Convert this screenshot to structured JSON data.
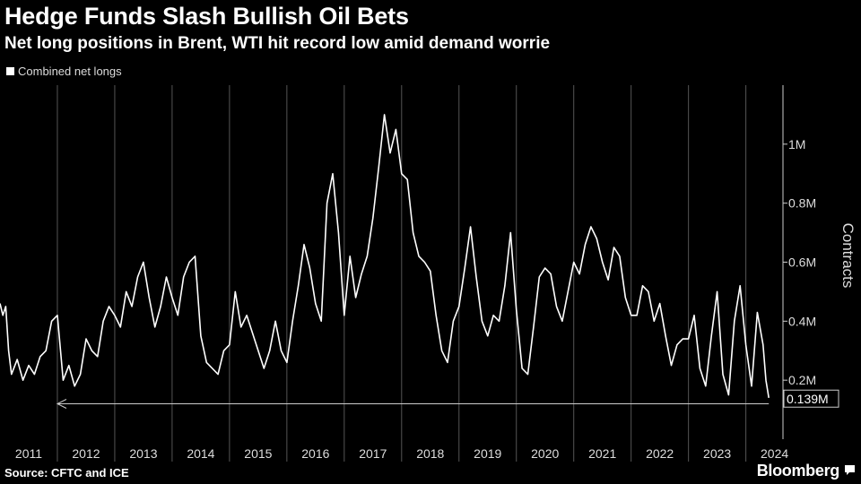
{
  "header": {
    "title": "Hedge Funds Slash Bullish Oil Bets",
    "subtitle": "Net long positions in Brent, WTI hit record low amid demand worrie"
  },
  "legend": {
    "label": "Combined net longs"
  },
  "footer": {
    "source": "Source: CFTC and ICE",
    "brand": "Bloomberg"
  },
  "icons": {
    "brand_icon": "speech-bubble-icon"
  },
  "colors": {
    "background": "#000000",
    "line": "#ffffff",
    "grid": "#555555"
  },
  "chart_data": {
    "type": "line",
    "title": "Hedge Funds Slash Bullish Oil Bets",
    "subtitle": "Net long positions in Brent, WTI hit record low amid demand worrie",
    "ylabel": "Contracts",
    "ylim": [
      0,
      1.2
    ],
    "xlim": [
      2011.0,
      2024.6
    ],
    "y_ticks": [
      0.2,
      0.4,
      0.6,
      0.8,
      1.0
    ],
    "y_tick_labels": [
      "0.2M",
      "0.4M",
      "0.6M",
      "0.8M",
      "1M"
    ],
    "x_ticks": [
      2011,
      2012,
      2013,
      2014,
      2015,
      2016,
      2017,
      2018,
      2019,
      2020,
      2021,
      2022,
      2023,
      2024
    ],
    "x_tick_labels": [
      "2011",
      "2012",
      "2013",
      "2014",
      "2015",
      "2016",
      "2017",
      "2018",
      "2019",
      "2020",
      "2021",
      "2022",
      "2023",
      "2024"
    ],
    "grid": "vertical",
    "legend_position": "top-left",
    "annotation": {
      "label": "0.139M",
      "value": 0.139,
      "type": "horizontal-arrow",
      "x_from": 2024.4,
      "x_to": 2012.0
    },
    "series": [
      {
        "name": "Combined net longs",
        "x": [
          2011.0,
          2011.05,
          2011.1,
          2011.15,
          2011.2,
          2011.3,
          2011.4,
          2011.5,
          2011.6,
          2011.7,
          2011.8,
          2011.9,
          2012.0,
          2012.1,
          2012.2,
          2012.3,
          2012.4,
          2012.5,
          2012.6,
          2012.7,
          2012.8,
          2012.9,
          2013.0,
          2013.1,
          2013.2,
          2013.3,
          2013.4,
          2013.5,
          2013.6,
          2013.7,
          2013.8,
          2013.9,
          2014.0,
          2014.1,
          2014.2,
          2014.3,
          2014.4,
          2014.5,
          2014.6,
          2014.7,
          2014.8,
          2014.9,
          2015.0,
          2015.1,
          2015.2,
          2015.3,
          2015.4,
          2015.5,
          2015.6,
          2015.7,
          2015.8,
          2015.9,
          2016.0,
          2016.1,
          2016.2,
          2016.3,
          2016.4,
          2016.5,
          2016.6,
          2016.7,
          2016.8,
          2016.9,
          2017.0,
          2017.1,
          2017.2,
          2017.3,
          2017.4,
          2017.5,
          2017.6,
          2017.7,
          2017.8,
          2017.9,
          2018.0,
          2018.1,
          2018.2,
          2018.3,
          2018.4,
          2018.5,
          2018.6,
          2018.7,
          2018.8,
          2018.9,
          2019.0,
          2019.1,
          2019.2,
          2019.3,
          2019.4,
          2019.5,
          2019.6,
          2019.7,
          2019.8,
          2019.9,
          2020.0,
          2020.1,
          2020.2,
          2020.3,
          2020.4,
          2020.5,
          2020.6,
          2020.7,
          2020.8,
          2020.9,
          2021.0,
          2021.1,
          2021.2,
          2021.3,
          2021.4,
          2021.5,
          2021.6,
          2021.7,
          2021.8,
          2021.9,
          2022.0,
          2022.1,
          2022.2,
          2022.3,
          2022.4,
          2022.5,
          2022.6,
          2022.7,
          2022.8,
          2022.9,
          2023.0,
          2023.1,
          2023.2,
          2023.3,
          2023.4,
          2023.5,
          2023.6,
          2023.7,
          2023.8,
          2023.9,
          2024.0,
          2024.1,
          2024.2,
          2024.3,
          2024.35,
          2024.4
        ],
        "values": [
          0.46,
          0.42,
          0.45,
          0.3,
          0.22,
          0.27,
          0.2,
          0.25,
          0.22,
          0.28,
          0.3,
          0.4,
          0.42,
          0.2,
          0.25,
          0.18,
          0.22,
          0.34,
          0.3,
          0.28,
          0.4,
          0.45,
          0.42,
          0.38,
          0.5,
          0.45,
          0.55,
          0.6,
          0.48,
          0.38,
          0.45,
          0.55,
          0.48,
          0.42,
          0.55,
          0.6,
          0.62,
          0.35,
          0.26,
          0.24,
          0.22,
          0.3,
          0.32,
          0.5,
          0.38,
          0.42,
          0.36,
          0.3,
          0.24,
          0.3,
          0.4,
          0.3,
          0.26,
          0.4,
          0.52,
          0.66,
          0.58,
          0.46,
          0.4,
          0.8,
          0.9,
          0.7,
          0.42,
          0.62,
          0.48,
          0.56,
          0.62,
          0.75,
          0.92,
          1.1,
          0.97,
          1.05,
          0.9,
          0.88,
          0.7,
          0.62,
          0.6,
          0.57,
          0.42,
          0.3,
          0.26,
          0.4,
          0.45,
          0.58,
          0.72,
          0.55,
          0.4,
          0.35,
          0.42,
          0.4,
          0.52,
          0.7,
          0.44,
          0.24,
          0.22,
          0.38,
          0.55,
          0.58,
          0.56,
          0.45,
          0.4,
          0.5,
          0.6,
          0.56,
          0.66,
          0.72,
          0.68,
          0.6,
          0.54,
          0.65,
          0.62,
          0.48,
          0.42,
          0.42,
          0.52,
          0.5,
          0.4,
          0.46,
          0.35,
          0.25,
          0.32,
          0.34,
          0.34,
          0.42,
          0.24,
          0.18,
          0.35,
          0.5,
          0.22,
          0.15,
          0.4,
          0.52,
          0.32,
          0.18,
          0.43,
          0.32,
          0.2,
          0.14
        ]
      }
    ]
  }
}
